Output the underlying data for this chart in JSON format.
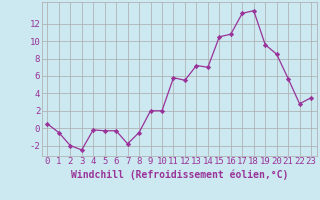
{
  "x": [
    0,
    1,
    2,
    3,
    4,
    5,
    6,
    7,
    8,
    9,
    10,
    11,
    12,
    13,
    14,
    15,
    16,
    17,
    18,
    19,
    20,
    21,
    22,
    23
  ],
  "y_values": [
    0.5,
    -0.5,
    -2.0,
    -2.5,
    -0.2,
    -0.3,
    -0.3,
    -1.8,
    -0.5,
    2.0,
    2.0,
    5.8,
    5.5,
    7.2,
    7.0,
    10.5,
    10.8,
    13.2,
    13.5,
    9.6,
    8.5,
    5.7,
    2.8,
    3.5
  ],
  "line_color": "#993399",
  "marker_color": "#993399",
  "bg_color": "#cce8f0",
  "grid_color": "#aaaaaa",
  "xlabel": "Windchill (Refroidissement éolien,°C)",
  "xlim": [
    -0.5,
    23.5
  ],
  "ylim": [
    -3.2,
    14.5
  ],
  "yticks": [
    -2,
    0,
    2,
    4,
    6,
    8,
    10,
    12
  ],
  "xticks": [
    0,
    1,
    2,
    3,
    4,
    5,
    6,
    7,
    8,
    9,
    10,
    11,
    12,
    13,
    14,
    15,
    16,
    17,
    18,
    19,
    20,
    21,
    22,
    23
  ],
  "xlabel_fontsize": 7,
  "tick_fontsize": 6.5
}
